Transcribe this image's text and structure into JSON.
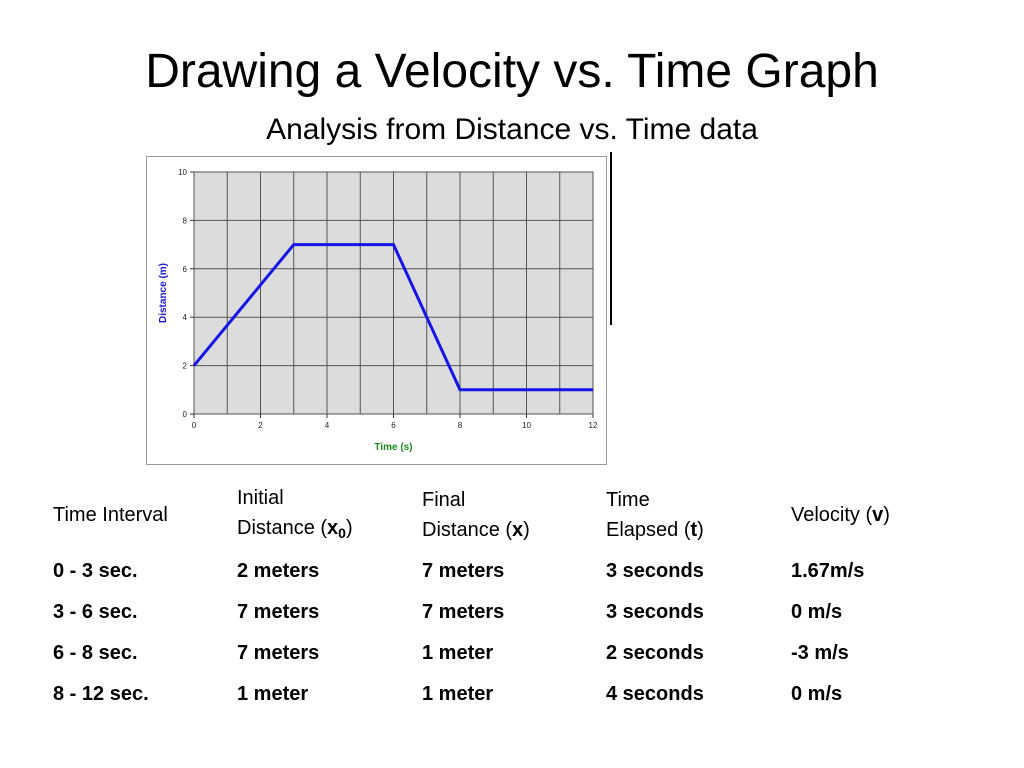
{
  "title": "Drawing a Velocity vs. Time Graph",
  "subtitle": "Analysis from Distance vs. Time data",
  "chart_data": {
    "type": "line",
    "xlabel": "Time (s)",
    "ylabel": "Distance (m)",
    "xlim": [
      0,
      12
    ],
    "ylim": [
      0,
      10
    ],
    "xticks": [
      "0",
      "2",
      "4",
      "6",
      "8",
      "10",
      "12"
    ],
    "yticks": [
      "0",
      "2",
      "4",
      "6",
      "8",
      "10"
    ],
    "grid": true,
    "series": [
      {
        "x": [
          0,
          3,
          6,
          8,
          12
        ],
        "y": [
          2,
          7,
          7,
          1,
          1
        ]
      }
    ],
    "colors": {
      "line": "#1515e6",
      "plot_bg": "#dcdcdc",
      "grid": "#555555",
      "ylabel": "#1a1acc",
      "xlabel": "#1f8a1f"
    }
  },
  "table": {
    "headers": [
      {
        "line1": "Time Interval",
        "line2": "",
        "sym": "",
        "sub": ""
      },
      {
        "line1": "Initial",
        "line2": "Distance (",
        "sym": "x",
        "sub": "0"
      },
      {
        "line1": "Final",
        "line2": "Distance (",
        "sym": "x",
        "sub": ""
      },
      {
        "line1": "Time",
        "line2": "Elapsed (",
        "sym": "t",
        "sub": ""
      },
      {
        "line1": "Velocity (",
        "line2": "",
        "sym": "v",
        "sub": ""
      }
    ],
    "rows": [
      [
        "0 - 3 sec.",
        "2 meters",
        "7 meters",
        "3 seconds",
        "1.67m/s"
      ],
      [
        "3 - 6 sec.",
        "7 meters",
        "7 meters",
        "3 seconds",
        "0 m/s"
      ],
      [
        "6 - 8 sec.",
        "7 meters",
        "1 meter",
        "2 seconds",
        "-3 m/s"
      ],
      [
        "8 - 12 sec.",
        "1 meter",
        "1 meter",
        "4 seconds",
        "0 m/s"
      ]
    ]
  }
}
